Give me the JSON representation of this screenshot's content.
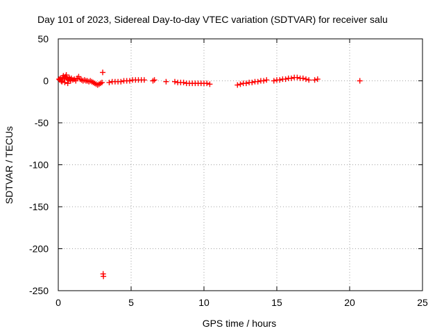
{
  "chart_data": {
    "type": "scatter",
    "title": "Day 101 of 2023, Sidereal Day-to-day VTEC variation (SDTVAR) for receiver salu",
    "xlabel": "GPS time / hours",
    "ylabel": "SDTVAR / TECUs",
    "xlim": [
      0,
      25
    ],
    "ylim": [
      -250,
      50
    ],
    "xticks": [
      0,
      5,
      10,
      15,
      20,
      25
    ],
    "xtick_labels": [
      "0",
      "5",
      "10",
      "15",
      "20",
      "25"
    ],
    "yticks": [
      50,
      0,
      -50,
      -100,
      -150,
      -200,
      -250
    ],
    "ytick_labels": [
      "50",
      "0",
      "-50",
      "-100",
      "-150",
      "-200",
      "-250"
    ],
    "grid": true,
    "marker": "plus",
    "series": [
      {
        "name": "SDTVAR",
        "color": "#ff0000",
        "points": [
          [
            0.05,
            2
          ],
          [
            0.1,
            1
          ],
          [
            0.15,
            3
          ],
          [
            0.2,
            0
          ],
          [
            0.25,
            -1
          ],
          [
            0.3,
            4
          ],
          [
            0.35,
            6
          ],
          [
            0.4,
            2
          ],
          [
            0.45,
            -2
          ],
          [
            0.5,
            5
          ],
          [
            0.55,
            7
          ],
          [
            0.6,
            3
          ],
          [
            0.65,
            -3
          ],
          [
            0.7,
            1
          ],
          [
            0.75,
            4
          ],
          [
            0.8,
            2
          ],
          [
            0.85,
            0
          ],
          [
            0.9,
            3
          ],
          [
            1.0,
            1
          ],
          [
            1.1,
            2
          ],
          [
            1.2,
            0
          ],
          [
            1.3,
            3
          ],
          [
            1.4,
            5
          ],
          [
            1.5,
            2
          ],
          [
            1.6,
            1
          ],
          [
            1.7,
            0
          ],
          [
            1.8,
            1
          ],
          [
            1.9,
            0
          ],
          [
            2.0,
            0
          ],
          [
            2.1,
            -1
          ],
          [
            2.2,
            0
          ],
          [
            2.3,
            -1
          ],
          [
            2.4,
            -2
          ],
          [
            2.5,
            -3
          ],
          [
            2.6,
            -4
          ],
          [
            2.7,
            -5
          ],
          [
            2.8,
            -4
          ],
          [
            2.9,
            -3
          ],
          [
            3.0,
            -2
          ],
          [
            3.05,
            10
          ],
          [
            3.08,
            -230
          ],
          [
            3.1,
            -233
          ],
          [
            3.5,
            -2
          ],
          [
            3.7,
            -1
          ],
          [
            3.9,
            -1
          ],
          [
            4.1,
            -1
          ],
          [
            4.3,
            -1
          ],
          [
            4.5,
            0
          ],
          [
            4.7,
            0
          ],
          [
            4.9,
            0
          ],
          [
            5.1,
            1
          ],
          [
            5.3,
            1
          ],
          [
            5.5,
            1
          ],
          [
            5.7,
            1
          ],
          [
            5.9,
            1
          ],
          [
            6.5,
            0
          ],
          [
            6.6,
            1
          ],
          [
            7.4,
            -1
          ],
          [
            8.0,
            -1
          ],
          [
            8.2,
            -2
          ],
          [
            8.4,
            -2
          ],
          [
            8.6,
            -2
          ],
          [
            8.8,
            -3
          ],
          [
            9.0,
            -3
          ],
          [
            9.2,
            -3
          ],
          [
            9.4,
            -3
          ],
          [
            9.6,
            -3
          ],
          [
            9.8,
            -3
          ],
          [
            10.0,
            -3
          ],
          [
            10.2,
            -3
          ],
          [
            10.4,
            -4
          ],
          [
            12.3,
            -5
          ],
          [
            12.5,
            -4
          ],
          [
            12.7,
            -3
          ],
          [
            12.9,
            -3
          ],
          [
            13.1,
            -2
          ],
          [
            13.3,
            -2
          ],
          [
            13.5,
            -1
          ],
          [
            13.7,
            -1
          ],
          [
            13.9,
            0
          ],
          [
            14.1,
            0
          ],
          [
            14.3,
            1
          ],
          [
            14.8,
            0
          ],
          [
            15.0,
            1
          ],
          [
            15.2,
            1
          ],
          [
            15.4,
            2
          ],
          [
            15.6,
            2
          ],
          [
            15.8,
            3
          ],
          [
            16.0,
            3
          ],
          [
            16.2,
            4
          ],
          [
            16.4,
            4
          ],
          [
            16.6,
            3
          ],
          [
            16.8,
            3
          ],
          [
            17.0,
            2
          ],
          [
            17.2,
            1
          ],
          [
            17.6,
            1
          ],
          [
            17.8,
            2
          ],
          [
            20.7,
            0
          ]
        ]
      }
    ]
  }
}
